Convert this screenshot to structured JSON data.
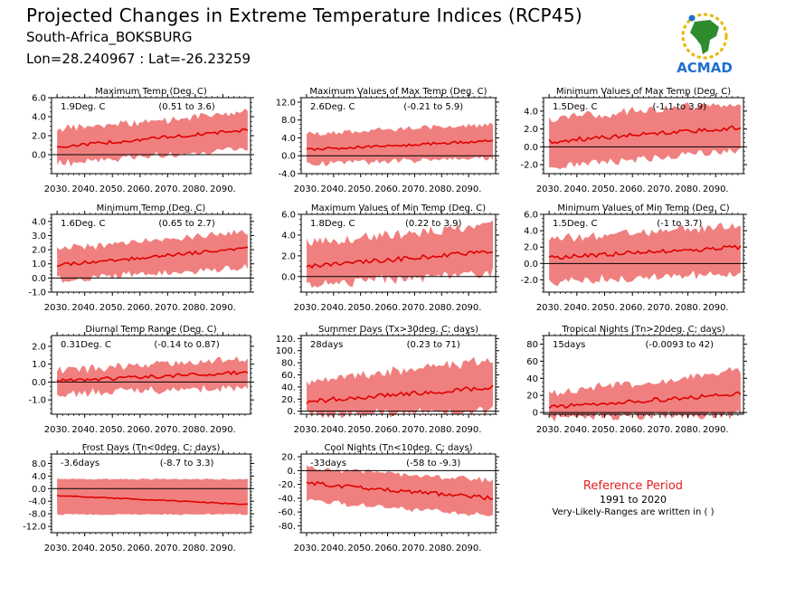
{
  "header": {
    "title": "Projected Changes in Extreme Temperature Indices (RCP45)",
    "location": "South-Africa_BOKSBURG",
    "coords": "Lon=28.240967 : Lat=-26.23259"
  },
  "logo": {
    "text": "ACMAD",
    "icon": "africa-map-logo"
  },
  "reference": {
    "title": "Reference Period",
    "years": "1991 to 2020",
    "note": "Very-Likely-Ranges are written in ( )"
  },
  "colors": {
    "band": "#f08080",
    "line": "#e00000",
    "zero": "#000000"
  },
  "chart_data": [
    {
      "type": "line",
      "title": "Maximum Temp (Deg. C)",
      "value_label": "1.9Deg. C",
      "range_label": "(0.51 to 3.6)",
      "xticks": [
        "2030.",
        "2040.",
        "2050.",
        "2060.",
        "2070.",
        "2080.",
        "2090."
      ],
      "ylim": [
        -2,
        6
      ],
      "yticks": [
        "6.0",
        "4.0",
        "2.0",
        "0.0"
      ],
      "ytick_values": [
        6,
        4,
        2,
        0
      ],
      "x": [
        2030,
        2100
      ],
      "median": [
        0.8,
        2.6
      ],
      "lower": [
        -0.6,
        1.0
      ],
      "upper": [
        2.3,
        4.1
      ],
      "noise": [
        0.35,
        0.9
      ]
    },
    {
      "type": "line",
      "title": "Maximum Values of Max Temp (Deg. C)",
      "value_label": "2.6Deg. C",
      "range_label": "(-0.21 to 5.9)",
      "xticks": [
        "2030.",
        "2040.",
        "2050.",
        "2060.",
        "2070.",
        "2080.",
        "2090."
      ],
      "ylim": [
        -4,
        13
      ],
      "yticks": [
        "12.0",
        "8.0",
        "4.0",
        "0.0",
        "-4.0"
      ],
      "ytick_values": [
        12,
        8,
        4,
        0,
        -4
      ],
      "x": [
        2030,
        2100
      ],
      "median": [
        1.4,
        3.3
      ],
      "lower": [
        -1.3,
        0.2
      ],
      "upper": [
        4.3,
        6.6
      ],
      "noise": [
        0.6,
        1.4
      ]
    },
    {
      "type": "line",
      "title": "Minimum Values of Max Temp (Deg. C)",
      "value_label": "1.5Deg. C",
      "range_label": "(-1.1 to 3.9)",
      "xticks": [
        "2030.",
        "2040.",
        "2050.",
        "2060.",
        "2070.",
        "2080.",
        "2090."
      ],
      "ylim": [
        -3,
        5.5
      ],
      "yticks": [
        "4.0",
        "2.0",
        "0.0",
        "-2.0"
      ],
      "ytick_values": [
        4,
        2,
        0,
        -2
      ],
      "x": [
        2030,
        2100
      ],
      "median": [
        0.6,
        2.2
      ],
      "lower": [
        -1.8,
        0.0
      ],
      "upper": [
        2.8,
        4.4
      ],
      "noise": [
        0.5,
        1.1
      ]
    },
    {
      "type": "line",
      "title": "Minimum Temp (Deg. C)",
      "value_label": "1.6Deg. C",
      "range_label": "(0.65 to 2.7)",
      "xticks": [
        "2030.",
        "2040.",
        "2050.",
        "2060.",
        "2070.",
        "2080.",
        "2090."
      ],
      "ylim": [
        -1,
        4.5
      ],
      "yticks": [
        "4.0",
        "3.0",
        "2.0",
        "1.0",
        "0.0",
        "-1.0"
      ],
      "ytick_values": [
        4,
        3,
        2,
        1,
        0,
        -1
      ],
      "x": [
        2030,
        2100
      ],
      "median": [
        0.9,
        2.1
      ],
      "lower": [
        0.1,
        1.0
      ],
      "upper": [
        1.8,
        3.1
      ],
      "noise": [
        0.25,
        0.6
      ]
    },
    {
      "type": "line",
      "title": "Maximum Values of Min Temp (Deg. C)",
      "value_label": "1.8Deg. C",
      "range_label": "(0.22 to 3.9)",
      "xticks": [
        "2030.",
        "2040.",
        "2050.",
        "2060.",
        "2070.",
        "2080.",
        "2090."
      ],
      "ylim": [
        -1.5,
        6
      ],
      "yticks": [
        "6.0",
        "4.0",
        "2.0",
        "0.0"
      ],
      "ytick_values": [
        6,
        4,
        2,
        0
      ],
      "x": [
        2030,
        2100
      ],
      "median": [
        1.0,
        2.4
      ],
      "lower": [
        -0.3,
        0.8
      ],
      "upper": [
        2.8,
        4.6
      ],
      "noise": [
        0.45,
        1.1
      ]
    },
    {
      "type": "line",
      "title": "Minimum Values of Min Temp (Deg. C)",
      "value_label": "1.5Deg. C",
      "range_label": "(-1 to 3.7)",
      "xticks": [
        "2030.",
        "2040.",
        "2050.",
        "2060.",
        "2070.",
        "2080.",
        "2090."
      ],
      "ylim": [
        -3.5,
        6
      ],
      "yticks": [
        "6.0",
        "4.0",
        "2.0",
        "0.0",
        "-2.0"
      ],
      "ytick_values": [
        6,
        4,
        2,
        0,
        -2
      ],
      "x": [
        2030,
        2100
      ],
      "median": [
        0.7,
        2.0
      ],
      "lower": [
        -1.8,
        -0.6
      ],
      "upper": [
        2.6,
        4.1
      ],
      "noise": [
        0.5,
        1.2
      ]
    },
    {
      "type": "line",
      "title": "Diurnal Temp Range (Deg. C)",
      "value_label": "0.31Deg. C",
      "range_label": "(-0.14 to 0.87)",
      "xticks": [
        "2030.",
        "2040.",
        "2050.",
        "2060.",
        "2070.",
        "2080.",
        "2090."
      ],
      "ylim": [
        -1.8,
        2.6
      ],
      "yticks": [
        "2.0",
        "1.0",
        "0.0",
        "-1.0"
      ],
      "ytick_values": [
        2,
        1,
        0,
        -1
      ],
      "x": [
        2030,
        2100
      ],
      "median": [
        0.05,
        0.55
      ],
      "lower": [
        -0.45,
        -0.1
      ],
      "upper": [
        0.45,
        1.1
      ],
      "noise": [
        0.2,
        0.5
      ]
    },
    {
      "type": "line",
      "title": "Summer Days (Tx>30deg. C; days)",
      "value_label": "28days",
      "range_label": "(0.23 to 71)",
      "xticks": [
        "2030.",
        "2040.",
        "2050.",
        "2060.",
        "2070.",
        "2080.",
        "2090."
      ],
      "ylim": [
        -5,
        125
      ],
      "yticks": [
        "120.",
        "100.",
        "80.",
        "60.",
        "40.",
        "20.",
        "0."
      ],
      "ytick_values": [
        120,
        100,
        80,
        60,
        40,
        20,
        0
      ],
      "x": [
        2030,
        2100
      ],
      "median": [
        16,
        40
      ],
      "lower": [
        2,
        8
      ],
      "upper": [
        42,
        78
      ],
      "noise": [
        8,
        18
      ]
    },
    {
      "type": "line",
      "title": "Tropical Nights (Tn>20deg. C; days)",
      "value_label": "15days",
      "range_label": "(-0.0093 to 42)",
      "xticks": [
        "2030.",
        "2040.",
        "2050.",
        "2060.",
        "2070.",
        "2080.",
        "2090."
      ],
      "ylim": [
        -2,
        90
      ],
      "yticks": [
        "80",
        "60",
        "40",
        "20",
        "0"
      ],
      "ytick_values": [
        80,
        60,
        40,
        20,
        0
      ],
      "x": [
        2030,
        2100
      ],
      "median": [
        6,
        22
      ],
      "lower": [
        0,
        2
      ],
      "upper": [
        18,
        44
      ],
      "noise": [
        5,
        12
      ]
    },
    {
      "type": "line",
      "title": "Frost Days (Tn<0deg. C; days)",
      "value_label": "-3.6days",
      "range_label": "(-8.7 to 3.3)",
      "xticks": [
        "2030.",
        "2040.",
        "2050.",
        "2060.",
        "2070.",
        "2080.",
        "2090."
      ],
      "ylim": [
        -14,
        11
      ],
      "yticks": [
        "8.0",
        "4.0",
        "0.0",
        "-4.0",
        "-8.0",
        "-12.0"
      ],
      "ytick_values": [
        8,
        4,
        0,
        -4,
        -8,
        -12
      ],
      "x": [
        2030,
        2100
      ],
      "median": [
        -2.2,
        -5.0
      ],
      "lower": [
        -8.0,
        -8.0
      ],
      "upper": [
        2.8,
        2.8
      ],
      "noise": [
        0.3,
        0.5
      ]
    },
    {
      "type": "line",
      "title": "Cool Nights (Tn<10deg. C; days)",
      "value_label": "-33days",
      "range_label": "(-58 to -9.3)",
      "xticks": [
        "2030.",
        "2040.",
        "2050.",
        "2060.",
        "2070.",
        "2080.",
        "2090."
      ],
      "ylim": [
        -90,
        24
      ],
      "yticks": [
        "20.",
        "0.",
        "-20.",
        "-40.",
        "-60.",
        "-80."
      ],
      "ytick_values": [
        20,
        0,
        -20,
        -40,
        -60,
        -80
      ],
      "x": [
        2030,
        2100
      ],
      "median": [
        -18,
        -40
      ],
      "lower": [
        -40,
        -62
      ],
      "upper": [
        0,
        -18
      ],
      "noise": [
        6,
        9
      ]
    }
  ]
}
